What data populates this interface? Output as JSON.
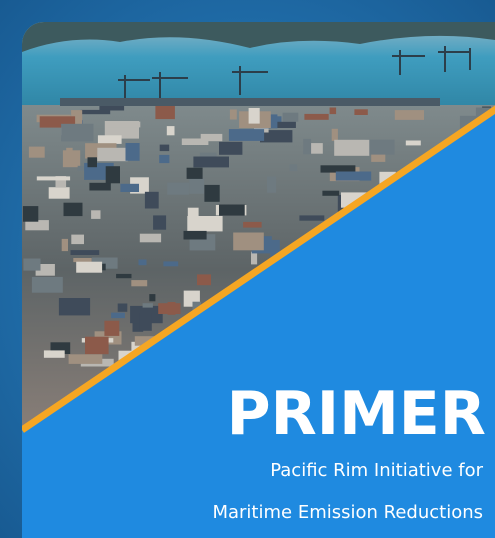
{
  "title": "PRIMER",
  "subtitle_lines": [
    "Pacific Rim Initiative for",
    "Maritime Emission Reductions"
  ]
}
